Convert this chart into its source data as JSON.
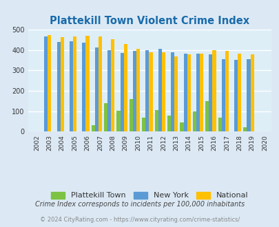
{
  "title": "Plattekill Town Violent Crime Index",
  "title_color": "#1a6baa",
  "years": [
    2002,
    2003,
    2004,
    2005,
    2006,
    2007,
    2008,
    2009,
    2010,
    2011,
    2012,
    2013,
    2014,
    2015,
    2016,
    2017,
    2018,
    2019,
    2020
  ],
  "plattekill": [
    0,
    0,
    0,
    0,
    0,
    30,
    140,
    103,
    160,
    70,
    106,
    80,
    44,
    100,
    148,
    68,
    0,
    20,
    0
  ],
  "new_york": [
    0,
    465,
    440,
    444,
    435,
    413,
    400,
    385,
    396,
    400,
    407,
    390,
    383,
    381,
    377,
    356,
    350,
    356,
    0
  ],
  "national": [
    0,
    473,
    463,
    465,
    470,
    467,
    453,
    430,
    407,
    387,
    387,
    367,
    377,
    383,
    397,
    395,
    381,
    379,
    0
  ],
  "color_plattekill": "#7dc242",
  "color_new_york": "#5b9bd5",
  "color_national": "#ffc000",
  "bg_color": "#dce9f5",
  "plot_bg": "#ddeef7",
  "ylim": [
    0,
    500
  ],
  "yticks": [
    0,
    100,
    200,
    300,
    400,
    500
  ],
  "footnote1": "Crime Index corresponds to incidents per 100,000 inhabitants",
  "footnote2": "© 2024 CityRating.com - https://www.cityrating.com/crime-statistics/",
  "footnote1_color": "#444444",
  "footnote2_color": "#888888",
  "bar_width": 0.28
}
